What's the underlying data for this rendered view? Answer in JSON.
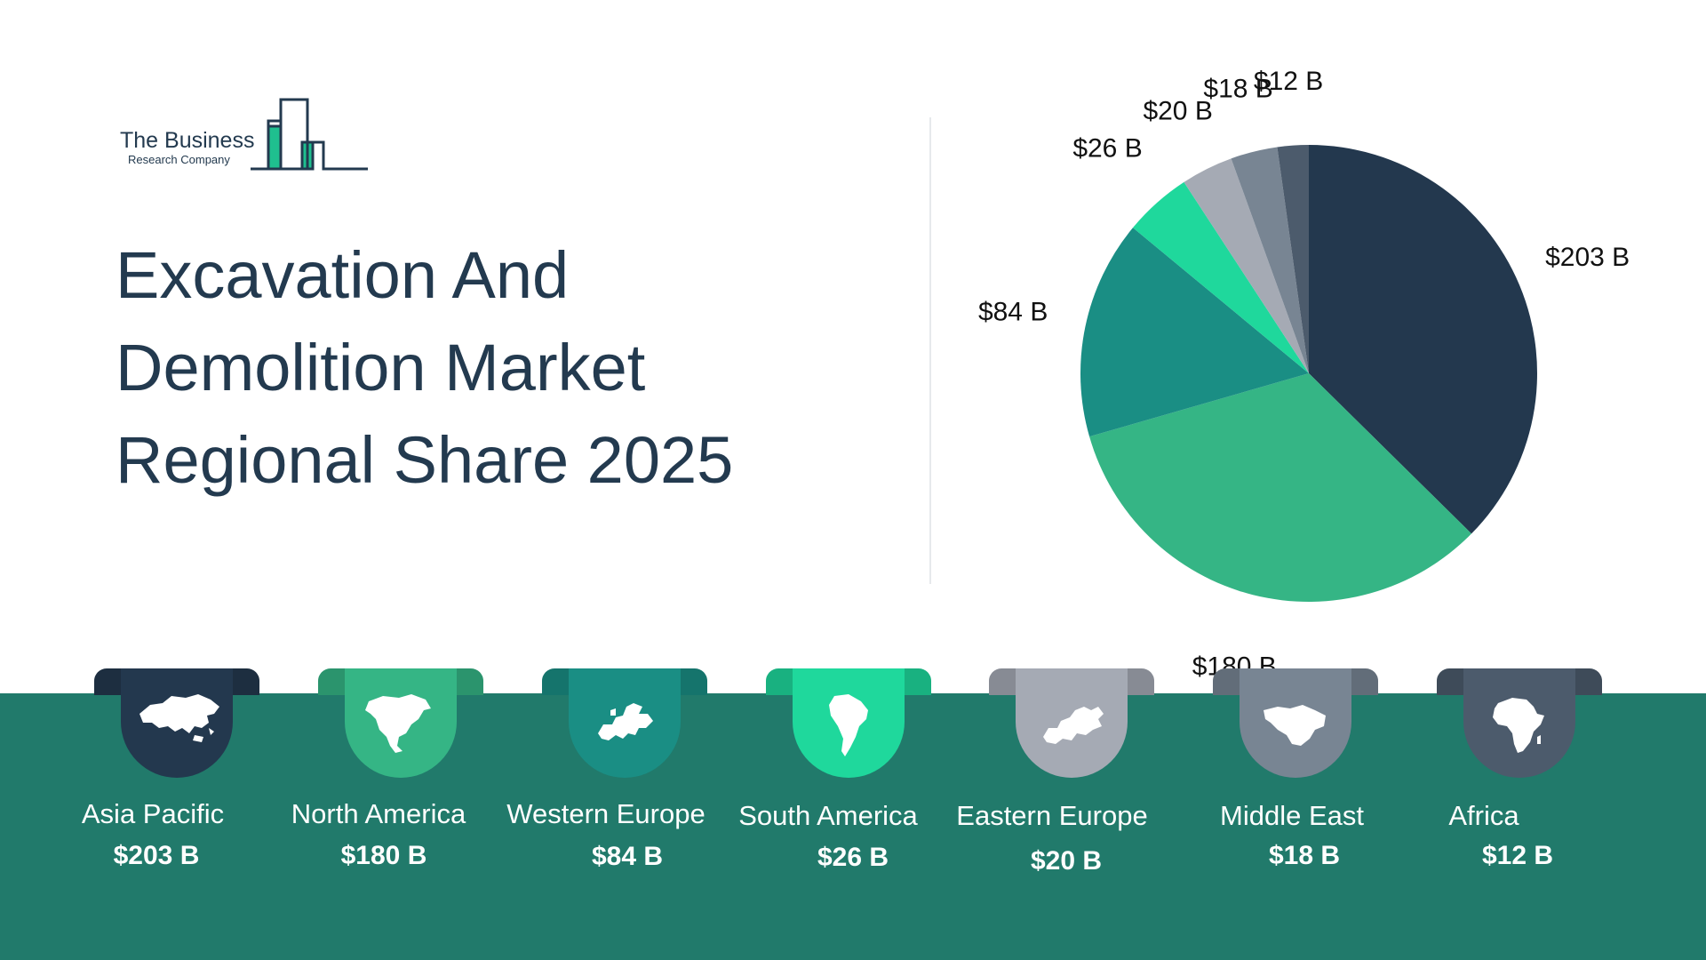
{
  "brand": {
    "name_line1": "The Business",
    "name_line2": "Research Company",
    "accent_color": "#1fbf8f",
    "dark_color": "#233a4f"
  },
  "title_lines": [
    "Excavation And",
    "Demolition Market",
    "Regional Share 2025"
  ],
  "chart_data": {
    "type": "pie",
    "title": "Excavation And Demolition Market Regional Share 2025",
    "unit": "B",
    "start_angle_deg": 0,
    "direction": "clockwise",
    "categories": [
      "Asia Pacific",
      "North America",
      "Western Europe",
      "South America",
      "Eastern Europe",
      "Middle East",
      "Africa"
    ],
    "values": [
      203,
      180,
      84,
      26,
      20,
      18,
      12
    ],
    "labels": [
      "$203 B",
      "$180 B",
      "$84 B",
      "$26 B",
      "$20 B",
      "$18 B",
      "$12 B"
    ],
    "colors": [
      "#23384e",
      "#35b585",
      "#1a8e84",
      "#1fd89c",
      "#a5aab4",
      "#788593",
      "#4c5b6c"
    ],
    "legend": "none"
  },
  "regions": [
    {
      "name": "Asia Pacific",
      "value": "$203 B",
      "color": "#23384e",
      "icon": "asia-pacific-map-icon"
    },
    {
      "name": "North America",
      "value": "$180 B",
      "color": "#35b585",
      "icon": "north-america-map-icon"
    },
    {
      "name": "Western Europe",
      "value": "$84 B",
      "color": "#1a8e84",
      "icon": "western-europe-map-icon"
    },
    {
      "name": "South America",
      "value": "$26 B",
      "color": "#1fd89c",
      "icon": "south-america-map-icon"
    },
    {
      "name": "Eastern Europe",
      "value": "$20 B",
      "color": "#a5aab4",
      "icon": "eastern-europe-map-icon"
    },
    {
      "name": "Middle East",
      "value": "$18 B",
      "color": "#788593",
      "icon": "middle-east-map-icon"
    },
    {
      "name": "Africa",
      "value": "$12 B",
      "color": "#4c5b6c",
      "icon": "africa-map-icon"
    }
  ],
  "band_color": "#217a6b"
}
